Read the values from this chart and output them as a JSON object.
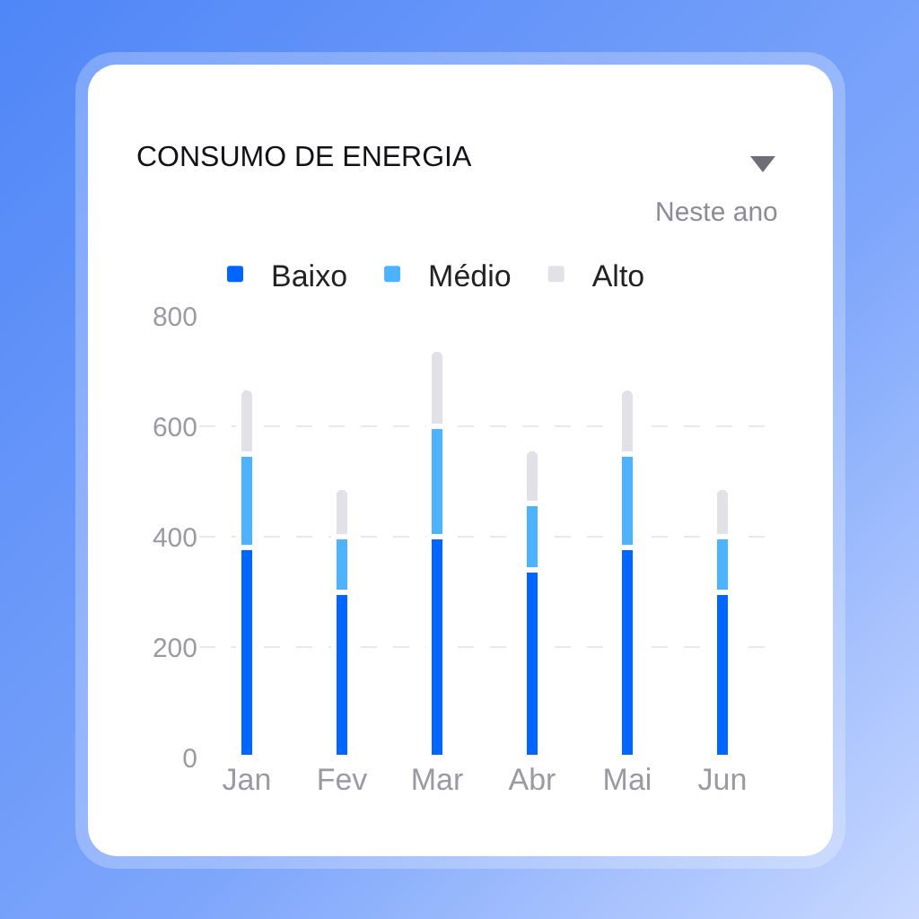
{
  "chart_data": {
    "type": "bar",
    "title": "CONSUMO DE ENERGIA",
    "annotations": [
      "Neste ano"
    ],
    "categories": [
      "Jan",
      "Fev",
      "Mar",
      "Abr",
      "Mai",
      "Jun"
    ],
    "stacked": true,
    "series": [
      {
        "name": "Baixo",
        "color": "#0066ff",
        "values": [
          380,
          300,
          400,
          340,
          380,
          300
        ]
      },
      {
        "name": "Médio",
        "color": "#4db3ff",
        "values": [
          170,
          100,
          200,
          120,
          170,
          100
        ]
      },
      {
        "name": "Alto",
        "color": "#e2e1e8",
        "values": [
          120,
          90,
          140,
          100,
          120,
          90
        ]
      }
    ],
    "ylim": [
      0,
      800
    ],
    "yticks": [
      0,
      200,
      400,
      600,
      800
    ],
    "grid": "y",
    "legend": "top left"
  }
}
